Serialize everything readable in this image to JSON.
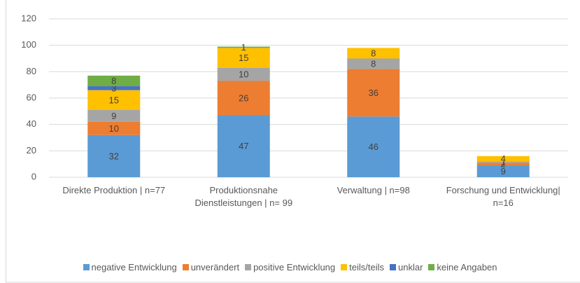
{
  "chart_data": {
    "type": "stacked_bar",
    "categories": [
      "Direkte Produktion | n=77",
      "Produktionsnahe Dienstleistungen | n= 99",
      "Verwaltung | n=98",
      "Forschung und Entwicklung| n=16"
    ],
    "series": [
      {
        "name": "negative Entwicklung",
        "color": "#5b9bd5",
        "values": [
          32,
          47,
          46,
          9
        ]
      },
      {
        "name": "unverändert",
        "color": "#ed7d31",
        "values": [
          10,
          26,
          36,
          2
        ]
      },
      {
        "name": "positive Entwicklung",
        "color": "#a5a5a5",
        "values": [
          9,
          10,
          8,
          1
        ]
      },
      {
        "name": "teils/teils",
        "color": "#ffc000",
        "values": [
          15,
          15,
          8,
          4
        ]
      },
      {
        "name": "unklar",
        "color": "#4472c4",
        "values": [
          3,
          null,
          null,
          null
        ]
      },
      {
        "name": "keine Angaben",
        "color": "#70ad47",
        "values": [
          8,
          1,
          null,
          null
        ]
      }
    ],
    "ylim": [
      0,
      120
    ],
    "yticks": [
      0,
      20,
      40,
      60,
      80,
      100,
      120
    ],
    "grid": true,
    "legend": "bottom"
  }
}
